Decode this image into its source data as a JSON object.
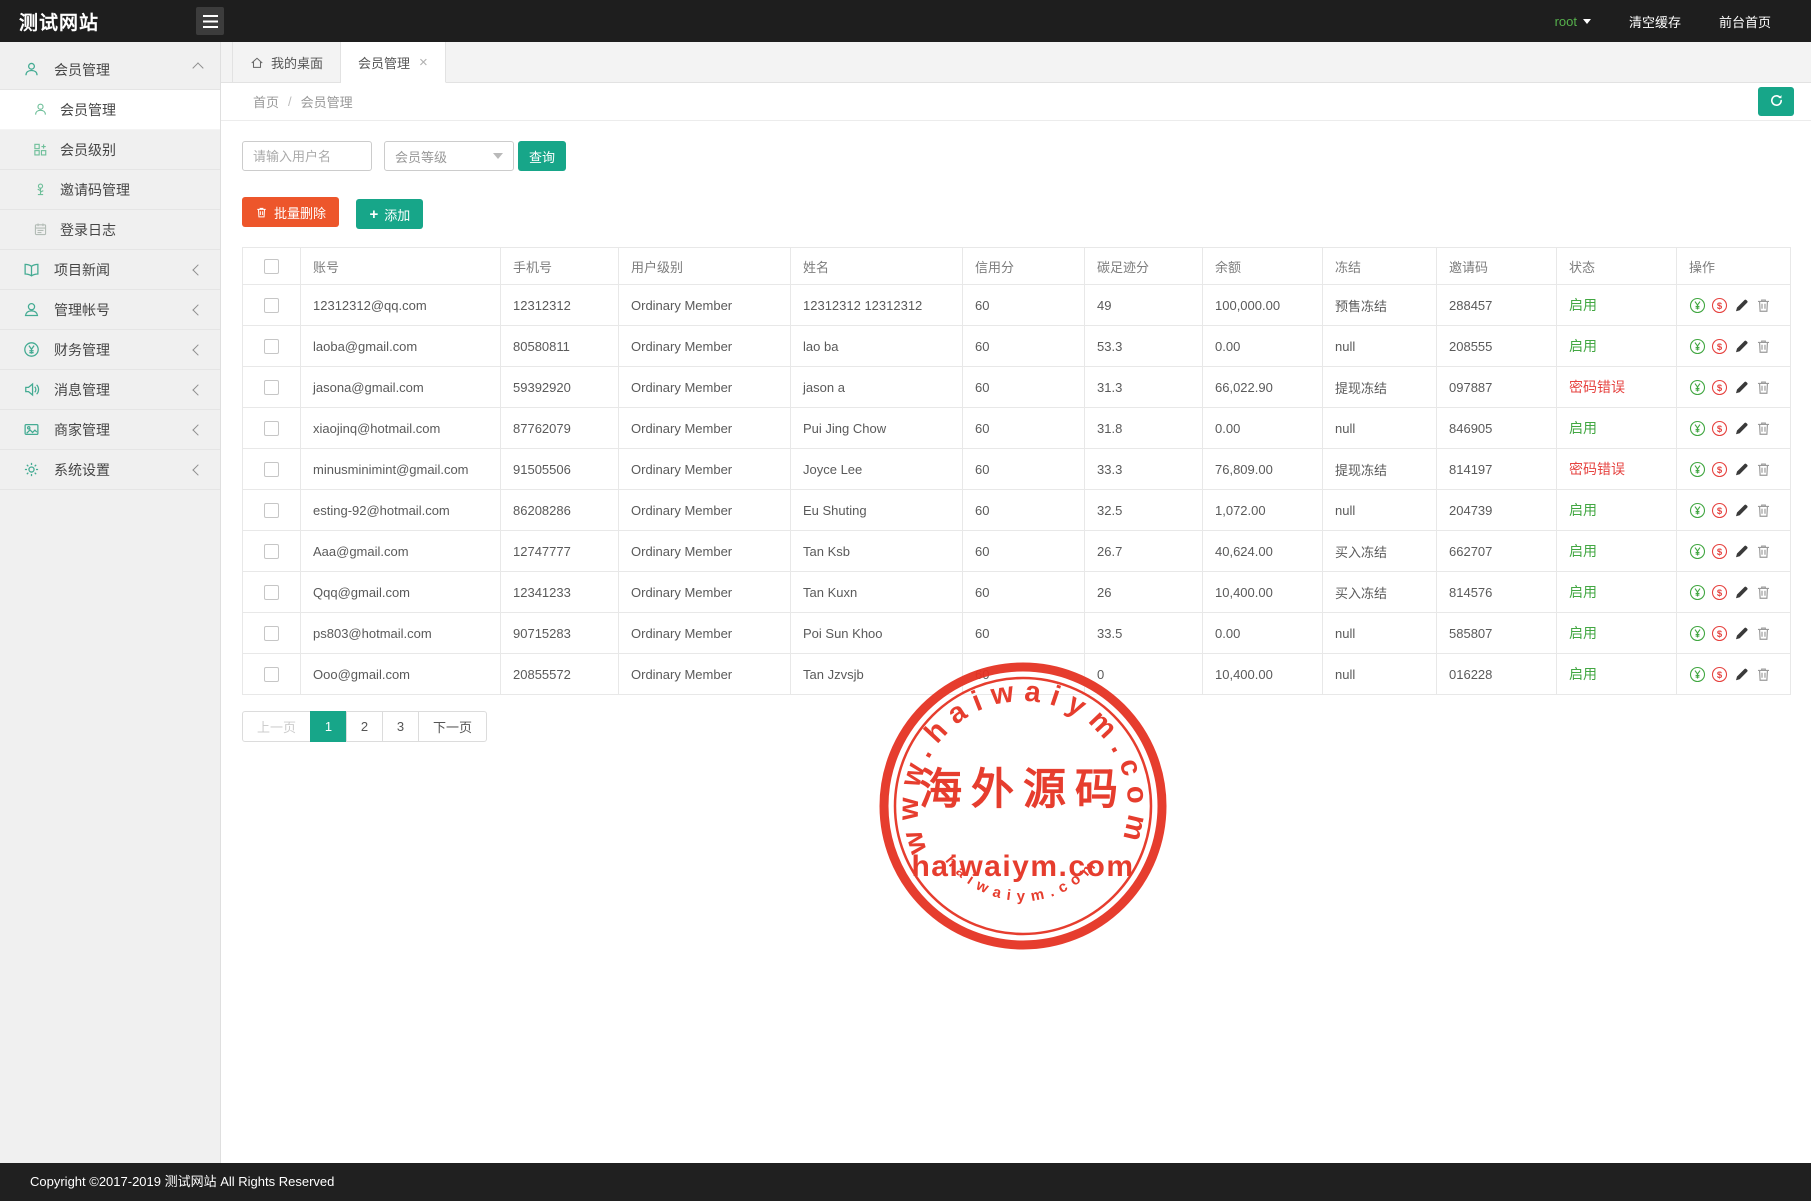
{
  "header": {
    "app_title": "测试网站",
    "username": "root",
    "clear_cache": "清空缓存",
    "front_site": "前台首页"
  },
  "sidebar": {
    "items": [
      {
        "label": "会员管理",
        "icon": "user-icon",
        "expanded": true,
        "children": [
          {
            "label": "会员管理",
            "icon": "user-icon",
            "active": true
          },
          {
            "label": "会员级别",
            "icon": "grid-icon",
            "active": false
          },
          {
            "label": "邀请码管理",
            "icon": "invite-icon",
            "active": false
          },
          {
            "label": "登录日志",
            "icon": "log-icon",
            "active": false
          }
        ]
      },
      {
        "label": "项目新闻",
        "icon": "book-icon",
        "expanded": false
      },
      {
        "label": "管理帐号",
        "icon": "users-icon",
        "expanded": false
      },
      {
        "label": "财务管理",
        "icon": "yen-icon",
        "expanded": false
      },
      {
        "label": "消息管理",
        "icon": "speaker-icon",
        "expanded": false
      },
      {
        "label": "商家管理",
        "icon": "shop-icon",
        "expanded": false
      },
      {
        "label": "系统设置",
        "icon": "gear-icon",
        "expanded": false
      }
    ]
  },
  "tabs": [
    {
      "label": "我的桌面",
      "icon": "home-icon",
      "active": false,
      "closable": false
    },
    {
      "label": "会员管理",
      "icon": "",
      "active": true,
      "closable": true
    }
  ],
  "breadcrumb": {
    "home": "首页",
    "separator": "/",
    "current": "会员管理"
  },
  "toolbar": {
    "username_placeholder": "请输入用户名",
    "level_select_label": "会员等级",
    "query_label": "查询",
    "batch_delete_label": "批量删除",
    "add_label": "添加"
  },
  "table": {
    "columns": [
      "账号",
      "手机号",
      "用户级别",
      "姓名",
      "信用分",
      "碳足迹分",
      "余额",
      "冻结",
      "邀请码",
      "状态",
      "操作"
    ],
    "ops_icons": [
      "yen-circle-icon",
      "dollar-circle-icon",
      "edit-pencil-icon",
      "trash-icon"
    ],
    "rows": [
      {
        "account": "12312312@qq.com",
        "phone": "12312312",
        "level": "Ordinary Member",
        "name": "12312312 12312312",
        "credit": "60",
        "carbon": "49",
        "balance": "100,000.00",
        "freeze": "预售冻结",
        "invite_code": "288457",
        "status": "启用",
        "status_type": "enabled"
      },
      {
        "account": "laoba@gmail.com",
        "phone": "80580811",
        "level": "Ordinary Member",
        "name": "lao ba",
        "credit": "60",
        "carbon": "53.3",
        "balance": "0.00",
        "freeze": "null",
        "invite_code": "208555",
        "status": "启用",
        "status_type": "enabled"
      },
      {
        "account": "jasona@gmail.com",
        "phone": "59392920",
        "level": "Ordinary Member",
        "name": "jason a",
        "credit": "60",
        "carbon": "31.3",
        "balance": "66,022.90",
        "freeze": "提现冻结",
        "invite_code": "097887",
        "status": "密码错误",
        "status_type": "error"
      },
      {
        "account": "xiaojinq@hotmail.com",
        "phone": "87762079",
        "level": "Ordinary Member",
        "name": "Pui Jing Chow",
        "credit": "60",
        "carbon": "31.8",
        "balance": "0.00",
        "freeze": "null",
        "invite_code": "846905",
        "status": "启用",
        "status_type": "enabled"
      },
      {
        "account": "minusminimint@gmail.com",
        "phone": "91505506",
        "level": "Ordinary Member",
        "name": "Joyce Lee",
        "credit": "60",
        "carbon": "33.3",
        "balance": "76,809.00",
        "freeze": "提现冻结",
        "invite_code": "814197",
        "status": "密码错误",
        "status_type": "error"
      },
      {
        "account": "esting-92@hotmail.com",
        "phone": "86208286",
        "level": "Ordinary Member",
        "name": "Eu Shuting",
        "credit": "60",
        "carbon": "32.5",
        "balance": "1,072.00",
        "freeze": "null",
        "invite_code": "204739",
        "status": "启用",
        "status_type": "enabled"
      },
      {
        "account": "Aaa@gmail.com",
        "phone": "12747777",
        "level": "Ordinary Member",
        "name": "Tan Ksb",
        "credit": "60",
        "carbon": "26.7",
        "balance": "40,624.00",
        "freeze": "买入冻结",
        "invite_code": "662707",
        "status": "启用",
        "status_type": "enabled"
      },
      {
        "account": "Qqq@gmail.com",
        "phone": "12341233",
        "level": "Ordinary Member",
        "name": "Tan Kuxn",
        "credit": "60",
        "carbon": "26",
        "balance": "10,400.00",
        "freeze": "买入冻结",
        "invite_code": "814576",
        "status": "启用",
        "status_type": "enabled"
      },
      {
        "account": "ps803@hotmail.com",
        "phone": "90715283",
        "level": "Ordinary Member",
        "name": "Poi Sun Khoo",
        "credit": "60",
        "carbon": "33.5",
        "balance": "0.00",
        "freeze": "null",
        "invite_code": "585807",
        "status": "启用",
        "status_type": "enabled"
      },
      {
        "account": "Ooo@gmail.com",
        "phone": "20855572",
        "level": "Ordinary Member",
        "name": "Tan Jzvsjb",
        "credit": "60",
        "carbon": "0",
        "balance": "10,400.00",
        "freeze": "null",
        "invite_code": "016228",
        "status": "启用",
        "status_type": "enabled"
      }
    ]
  },
  "pagination": {
    "prev": "上一页",
    "pages": [
      "1",
      "2",
      "3"
    ],
    "active_page": "1",
    "next": "下一页"
  },
  "watermark": {
    "arc_top": "www.haiwaiym.com",
    "center_cn": "海外源码",
    "center_en": "haiwaiym.com",
    "arc_bottom": "haiwaiym.com",
    "color": "#e53323"
  },
  "footer": {
    "copyright": "Copyright ©2017-2019 测试网站 All Rights Reserved"
  },
  "colors": {
    "accent_teal": "#17a689",
    "danger_orange": "#ed562b",
    "status_green": "#42a742",
    "status_red": "#e64340"
  }
}
